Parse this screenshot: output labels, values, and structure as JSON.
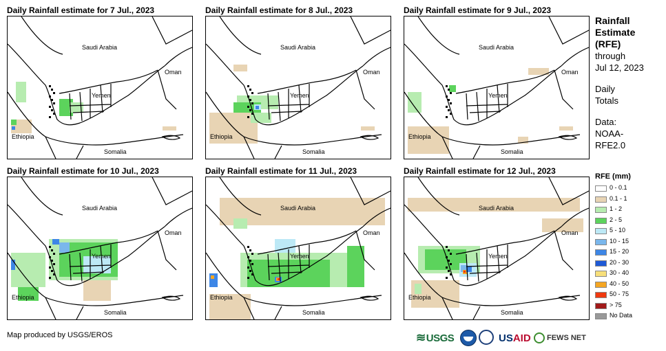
{
  "panels": [
    {
      "title": "Daily Rainfall estimate for 7 Jul., 2023",
      "day": 7
    },
    {
      "title": "Daily Rainfall estimate for 8 Jul., 2023",
      "day": 8
    },
    {
      "title": "Daily Rainfall estimate for 9 Jul., 2023",
      "day": 9
    },
    {
      "title": "Daily Rainfall estimate for 10 Jul., 2023",
      "day": 10
    },
    {
      "title": "Daily Rainfall estimate for 11 Jul., 2023",
      "day": 11
    },
    {
      "title": "Daily Rainfall estimate for 12 Jul., 2023",
      "day": 12
    }
  ],
  "map_labels": {
    "saudi_arabia": "Saudi Arabia",
    "oman": "Oman",
    "yemen": "Yemen",
    "ethiopia": "Ethiopia",
    "somalia": "Somalia"
  },
  "side": {
    "title_lines": [
      "Rainfall",
      "Estimate",
      "(RFE)"
    ],
    "through": "through",
    "date": "Jul 12, 2023",
    "totals_lines": [
      "Daily",
      "Totals"
    ],
    "data_lines": [
      "Data:",
      "NOAA-",
      "RFE2.0"
    ]
  },
  "legend": {
    "title": "RFE (mm)",
    "items": [
      {
        "label": "0 - 0.1",
        "color": "#ffffff"
      },
      {
        "label": "0.1 - 1",
        "color": "#e8d4b4"
      },
      {
        "label": "1 - 2",
        "color": "#b7ecb0"
      },
      {
        "label": "2 - 5",
        "color": "#5cd35c"
      },
      {
        "label": "5 - 10",
        "color": "#bde9f6"
      },
      {
        "label": "10 - 15",
        "color": "#7ab7ec"
      },
      {
        "label": "15 - 20",
        "color": "#3d86e6"
      },
      {
        "label": "20 - 30",
        "color": "#1f5ad6"
      },
      {
        "label": "30 - 40",
        "color": "#f7df7a"
      },
      {
        "label": "40 - 50",
        "color": "#f5a623"
      },
      {
        "label": "50 - 75",
        "color": "#f03a10"
      },
      {
        "label": "> 75",
        "color": "#a11a1a"
      },
      {
        "label": "No Data",
        "color": "#999999"
      }
    ]
  },
  "credit": "Map produced by USGS/EROS",
  "logos": {
    "usgs": "USGS",
    "usaid_us": "US",
    "usaid_aid": "AID",
    "fewsnet": "FEWS NET"
  }
}
